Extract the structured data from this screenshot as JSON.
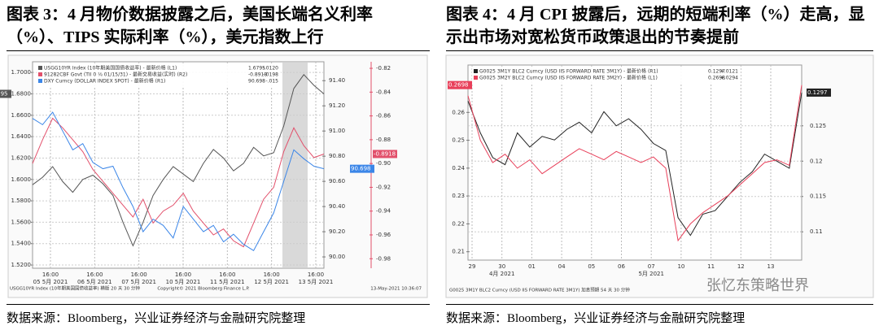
{
  "chart_data": [
    {
      "type": "line",
      "title": "图表 3：4 月物价数据披露之后，美国长端名义利率（%）、TIPS 实际利率（%），美元指数上行",
      "source": "数据来源：Bloomberg，兴业证券经济与金融研究院整理",
      "footer": [
        "USGG10YR Index (10年期美国国债收益率) 横版 20 天 30 分钟",
        "Copyright© 2021 Bloomberg Finance L.P.",
        "13-May-2021 10:36:07"
      ],
      "x_labels": [
        [
          "16:00",
          "05 5月 2021"
        ],
        [
          "16:00",
          "06 5月 2021"
        ],
        [
          "16:00",
          "07 5月 2021"
        ],
        [
          "16:00",
          "10 5月 2021"
        ],
        [
          "16:00",
          "11 5月 2021"
        ],
        [
          "16:00",
          "12 5月 2021"
        ],
        [
          "16:00",
          "13 5月 2021"
        ]
      ],
      "ylim": [
        1.517,
        1.71
      ],
      "yticks": [
        {
          "value": 1.52,
          "label": "1.5200"
        },
        {
          "value": 1.54,
          "label": "1.5400"
        },
        {
          "value": 1.56,
          "label": "1.5600"
        },
        {
          "value": 1.58,
          "label": "1.5800"
        },
        {
          "value": 1.6,
          "label": "1.6000"
        },
        {
          "value": 1.62,
          "label": "1.6200"
        },
        {
          "value": 1.64,
          "label": "1.6400"
        },
        {
          "value": 1.66,
          "label": "1.6600"
        },
        {
          "value": 1.68,
          "label": "1.6800"
        },
        {
          "value": 1.7,
          "label": "1.7000"
        }
      ],
      "y2lim": [
        89.91,
        91.55
      ],
      "y2ticks": [
        {
          "value": 90,
          "label": "90.00"
        },
        {
          "value": 90.2,
          "label": "90.20"
        },
        {
          "value": 90.4,
          "label": "90.40"
        },
        {
          "value": 90.6,
          "label": "90.60"
        },
        {
          "value": 90.8,
          "label": "90.80"
        },
        {
          "value": 91,
          "label": "91.00"
        },
        {
          "value": 91.2,
          "label": "91.20"
        },
        {
          "value": 91.4,
          "label": "91.40"
        }
      ],
      "y3lim": [
        -0.988,
        -0.8145
      ],
      "y3ticks": [
        -0.98,
        -0.96,
        -0.94,
        {
          "value": -0.92,
          "label": "-0.92"
        },
        {
          "value": -0.9,
          "label": "-0.90"
        },
        -0.88,
        -0.86,
        -0.84,
        -0.82
      ],
      "grid": true,
      "series": [
        {
          "name": "USGG10YR Index (10年期美国国债收益率) - 最新价格 (L1)",
          "last": "1.6795",
          "change": "-.0120",
          "color": "#555555",
          "axis": "y",
          "values": [
            1.595,
            1.602,
            1.612,
            1.598,
            1.588,
            1.6,
            1.604,
            1.596,
            1.585,
            1.56,
            1.538,
            1.56,
            1.585,
            1.6,
            1.612,
            1.605,
            1.598,
            1.615,
            1.628,
            1.62,
            1.608,
            1.615,
            1.63,
            1.622,
            1.625,
            1.65,
            1.685,
            1.698,
            1.688,
            1.68
          ]
        },
        {
          "name": "91282CBF Govt (TII 0 ⅛ 01/15/31) - 最新交易收益(实时) (R2)",
          "last": "-0.8918",
          "change": "-.0198",
          "color": "#e2506b",
          "axis": "y3",
          "values": [
            -0.9,
            -0.88,
            -0.862,
            -0.87,
            -0.88,
            -0.89,
            -0.905,
            -0.915,
            -0.925,
            -0.935,
            -0.945,
            -0.93,
            -0.95,
            -0.94,
            -0.935,
            -0.925,
            -0.94,
            -0.95,
            -0.96,
            -0.955,
            -0.965,
            -0.97,
            -0.95,
            -0.93,
            -0.92,
            -0.89,
            -0.87,
            -0.885,
            -0.895,
            -0.892
          ]
        },
        {
          "name": "DXY Curncy (DOLLAR INDEX SPOT) - 最新价格 (R1)",
          "last": "90.698",
          "change": "-.015",
          "color": "#3b86e8",
          "axis": "y2",
          "values": [
            91.1,
            91.05,
            91.15,
            91.0,
            90.85,
            90.9,
            90.75,
            90.7,
            90.72,
            90.55,
            90.4,
            90.2,
            90.3,
            90.25,
            90.15,
            90.4,
            90.3,
            90.2,
            90.25,
            90.12,
            90.18,
            90.1,
            90.05,
            90.2,
            90.35,
            90.6,
            90.85,
            90.78,
            90.72,
            90.7
          ]
        }
      ]
    },
    {
      "type": "line",
      "title": "图表 4：4 月 CPI 披露后，远期的短端利率（%）走高，显示出市场对宽松货币政策退出的节奏提前",
      "source": "数据来源：Bloomberg，兴业证券经济与金融研究院整理",
      "footer": [
        "G0025 3M1Y BLC2 Curncy (USD IIS FORWARD RATE 3M1Y) 加息预期 54 天 30 分钟"
      ],
      "watermark": "张忆东策略世界",
      "x_labels": [
        [
          "29"
        ],
        [
          "30",
          "4月 2021"
        ],
        [
          "01"
        ],
        [
          "04"
        ],
        [
          "05"
        ],
        [
          "06"
        ],
        [
          "07",
          "5月 2021"
        ],
        [
          "10"
        ],
        [
          "11"
        ],
        [
          "12"
        ],
        [
          "13"
        ]
      ],
      "ylim": [
        0.207,
        0.277
      ],
      "yticks": [
        0.21,
        0.22,
        0.23,
        0.24,
        0.25,
        0.26
      ],
      "y2lim": [
        0.106,
        0.1336
      ],
      "y2ticks": [
        0.11,
        0.115,
        0.12,
        0.125
      ],
      "grid": true,
      "series": [
        {
          "name": "G0025 3M1Y BLC2 Curncy (USD IIS FORWARD RATE 3M1Y) - 最新价格 (R1)",
          "last": "0.1297",
          "change": "+.0121",
          "color": "#222222",
          "axis": "y2",
          "values": [
            0.1285,
            0.124,
            0.1205,
            0.1195,
            0.124,
            0.122,
            0.1235,
            0.123,
            0.1245,
            0.1255,
            0.124,
            0.127,
            0.125,
            0.126,
            0.1245,
            0.1225,
            0.1215,
            0.112,
            0.1095,
            0.1125,
            0.113,
            0.115,
            0.117,
            0.1185,
            0.121,
            0.12,
            0.119,
            0.1297
          ]
        },
        {
          "name": "G0025 3M2Y BLC2 Curncy (USD IIS FORWARD RATE 3M2Y) - 最新价格 (L1)",
          "last": "0.2698",
          "change": "+.0294",
          "color": "#e8405a",
          "axis": "y",
          "values": [
            0.266,
            0.25,
            0.242,
            0.245,
            0.24,
            0.243,
            0.238,
            0.241,
            0.244,
            0.247,
            0.245,
            0.243,
            0.246,
            0.244,
            0.242,
            0.244,
            0.24,
            0.214,
            0.22,
            0.224,
            0.227,
            0.23,
            0.234,
            0.238,
            0.242,
            0.243,
            0.241,
            0.2698
          ]
        }
      ]
    }
  ]
}
